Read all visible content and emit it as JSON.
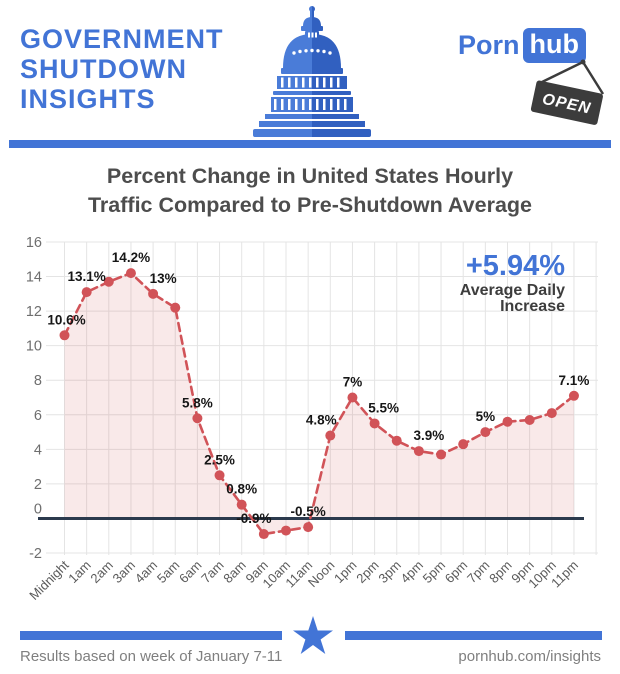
{
  "header": {
    "title_lines": [
      "GOVERNMENT",
      "SHUTDOWN",
      "INSIGHTS"
    ],
    "logo": {
      "word1": "Porn",
      "word2": "hub",
      "sign_text": "OPEN"
    }
  },
  "title_lines": [
    "Percent Change in United States Hourly",
    "Traffic Compared to Pre-Shutdown Average"
  ],
  "chart_data": {
    "type": "line",
    "title": "Percent Change in United States Hourly Traffic Compared to Pre-Shutdown Average",
    "x_labels": [
      "Midnight",
      "1am",
      "2am",
      "3am",
      "4am",
      "5am",
      "6am",
      "7am",
      "8am",
      "9am",
      "10am",
      "11am",
      "Noon",
      "1pm",
      "2pm",
      "3pm",
      "4pm",
      "5pm",
      "6pm",
      "7pm",
      "8pm",
      "9pm",
      "10pm",
      "11pm"
    ],
    "values": [
      10.6,
      13.1,
      13.7,
      14.2,
      13,
      12.2,
      5.8,
      2.5,
      0.8,
      -0.9,
      -0.7,
      -0.5,
      4.8,
      7,
      5.5,
      4.5,
      3.9,
      3.7,
      4.3,
      5,
      5.6,
      5.7,
      6.1,
      7.1
    ],
    "point_labels": [
      "10.6%",
      "13.1%",
      null,
      "14.2%",
      "13%",
      null,
      "5.8%",
      "2.5%",
      "0.8%",
      "-0.9%",
      null,
      "-0.5%",
      "4.8%",
      "7%",
      "5.5%",
      null,
      "3.9%",
      null,
      null,
      "5%",
      null,
      null,
      null,
      "7.1%"
    ],
    "label_offsets": {
      "0": [
        2,
        0
      ],
      "4": [
        10,
        0
      ],
      "9": [
        -10,
        0
      ],
      "12": [
        -9,
        0
      ],
      "14": [
        9,
        0
      ],
      "16": [
        10,
        0
      ]
    },
    "yticks": [
      16,
      14,
      12,
      10,
      8,
      6,
      4,
      2,
      0,
      -2
    ],
    "ylim": [
      -2,
      16
    ],
    "grid": true,
    "legend": false,
    "annotation": {
      "value": "+5.94%",
      "lines": [
        "Average Daily",
        "Increase"
      ]
    },
    "colors": {
      "line": "#d15358",
      "fill": "rgba(209,83,88,0.13)",
      "zero_line": "#2b3a4d",
      "grid": "#e4e4e4",
      "tick": "#6e6e6e",
      "axis_label": "#5a5a5a",
      "point_label": "#161616",
      "annotation_value": "#4274d6",
      "annotation_label": "#3d3d3d"
    }
  },
  "footer": {
    "left_text": "Results based on week of January 7-11",
    "right_text": "pornhub.com/insights"
  },
  "colors": {
    "brand_blue": "#4274d6",
    "sign_dark": "#3c3c3c"
  }
}
